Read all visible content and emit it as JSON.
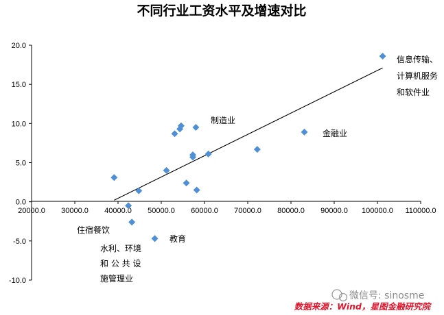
{
  "chart_data": {
    "type": "scatter",
    "title": "不同行业工资水平及增速对比",
    "xlim": [
      20000,
      110000
    ],
    "ylim": [
      -10,
      20
    ],
    "x_ticks": [
      "20000.0",
      "30000.0",
      "40000.0",
      "50000.0",
      "60000.0",
      "70000.0",
      "80000.0",
      "90000.0",
      "100000.0",
      "110000.0"
    ],
    "y_ticks": [
      "20.0",
      "15.0",
      "10.0",
      "5.0",
      "0.0",
      "-5.0",
      "-10.0"
    ],
    "points": [
      {
        "x": 101200,
        "y": 18.6
      },
      {
        "x": 83100,
        "y": 8.9
      },
      {
        "x": 72200,
        "y": 6.7
      },
      {
        "x": 60900,
        "y": 6.1
      },
      {
        "x": 57300,
        "y": 6.0
      },
      {
        "x": 57300,
        "y": 5.7
      },
      {
        "x": 58000,
        "y": 9.5
      },
      {
        "x": 54600,
        "y": 9.7
      },
      {
        "x": 54300,
        "y": 9.3
      },
      {
        "x": 53100,
        "y": 8.7
      },
      {
        "x": 51200,
        "y": 4.0
      },
      {
        "x": 55800,
        "y": 2.4
      },
      {
        "x": 58200,
        "y": 1.5
      },
      {
        "x": 44800,
        "y": 1.4
      },
      {
        "x": 39100,
        "y": 3.1
      },
      {
        "x": 42400,
        "y": -0.5
      },
      {
        "x": 43200,
        "y": -2.6
      },
      {
        "x": 48500,
        "y": -4.7
      }
    ],
    "trendline": [
      {
        "x": 39100,
        "y": 0.2
      },
      {
        "x": 101200,
        "y": 17.1
      }
    ],
    "marker_color": "#4f8fd6",
    "annotations": [
      {
        "lines": [
          "信息传输、",
          "计算机服务",
          "和软件业"
        ]
      },
      {
        "lines": [
          "制造业"
        ]
      },
      {
        "lines": [
          "金融业"
        ]
      },
      {
        "lines": [
          "住宿餐饮"
        ]
      },
      {
        "lines": [
          "教育"
        ]
      },
      {
        "lines": [
          "水利、环境",
          "和 公 共 设",
          "施管理业"
        ]
      }
    ]
  },
  "watermark": "微信号: sinosme",
  "source": "数据来源：Wind，星图金融研究院"
}
